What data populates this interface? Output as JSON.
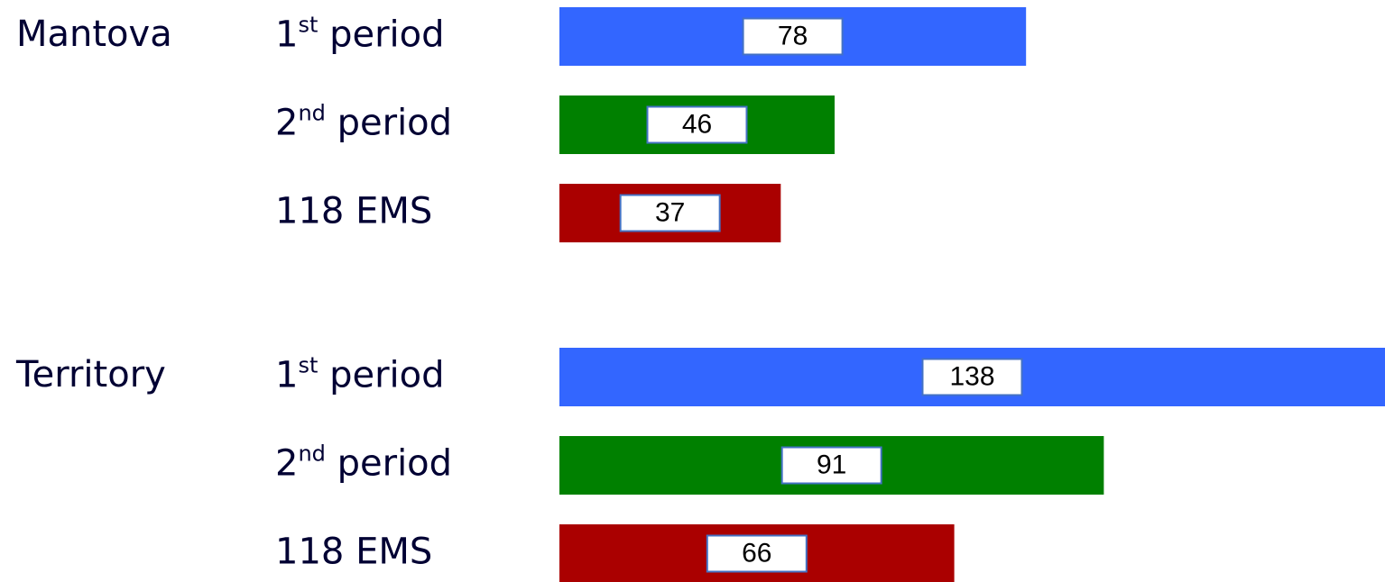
{
  "chart_data": {
    "type": "bar",
    "categories": [
      "Mantova",
      "Territory"
    ],
    "series": [
      {
        "name": "1st period",
        "color": "#3366ff",
        "values": [
          78,
          138
        ]
      },
      {
        "name": "2nd period",
        "color": "#008000",
        "values": [
          46,
          91
        ]
      },
      {
        "name": "118 EMS",
        "color": "#aa0000",
        "values": [
          37,
          66
        ]
      }
    ]
  }
}
